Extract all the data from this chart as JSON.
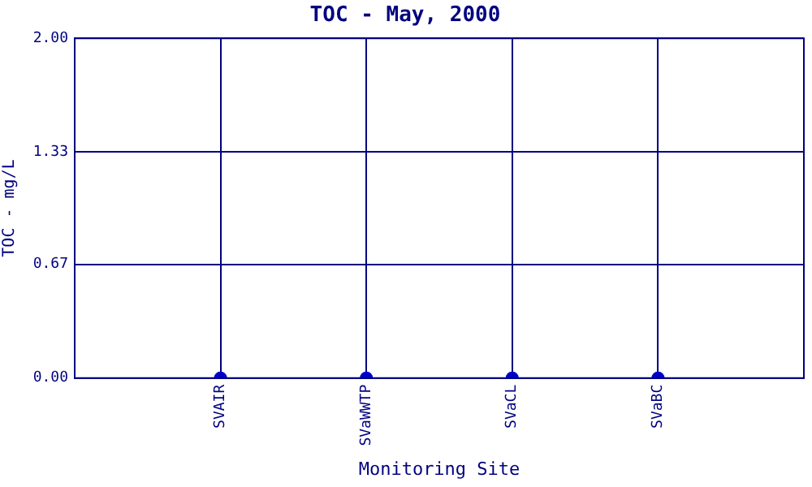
{
  "chart_data": {
    "type": "scatter",
    "title": "TOC - May, 2000",
    "xlabel": "Monitoring Site",
    "ylabel": "TOC - mg/L",
    "categories": [
      "SVAIR",
      "SVaWWTP",
      "SVaCL",
      "SVaBC"
    ],
    "series": [
      {
        "color": "#0000cc",
        "values": [
          0,
          0,
          0,
          0
        ]
      }
    ],
    "ylim": [
      0,
      2
    ],
    "yticks": [
      {
        "value": 0,
        "label": "0.00"
      },
      0.67,
      1.33,
      {
        "value": 2,
        "label": "2.00"
      }
    ],
    "grid": true,
    "marker": "circle",
    "legend": false
  }
}
